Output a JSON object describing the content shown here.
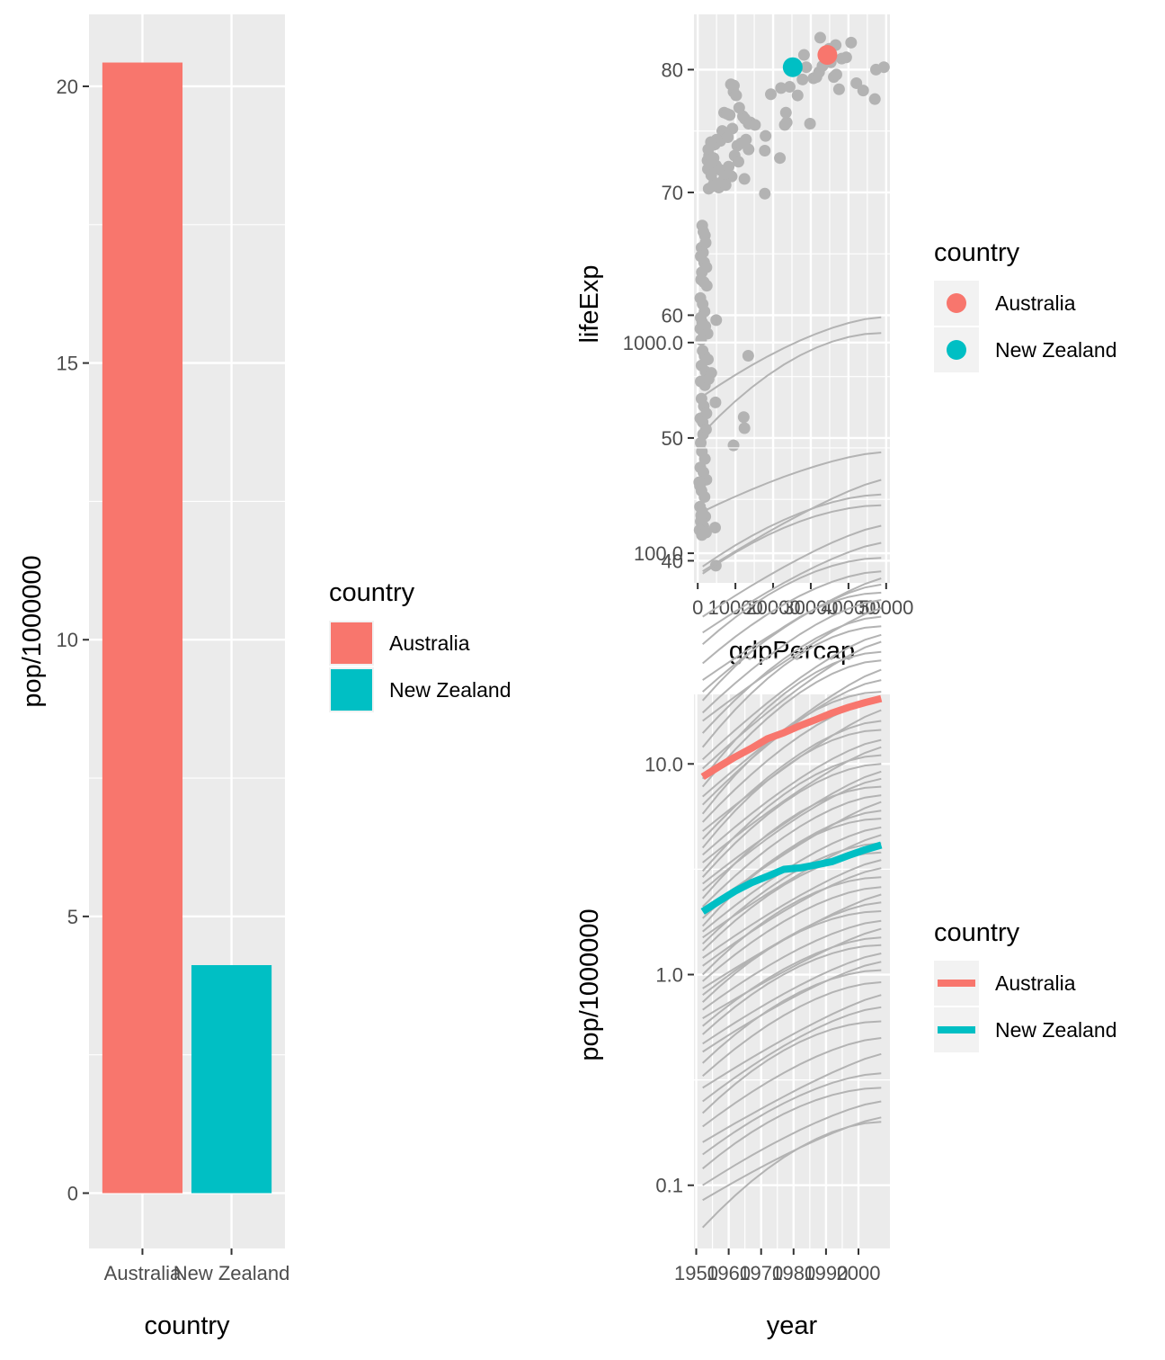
{
  "chart_data": [
    {
      "type": "bar",
      "title": "",
      "xlabel": "country",
      "ylabel": "pop/1000000",
      "categories": [
        "Australia",
        "New Zealand"
      ],
      "values": [
        20.43,
        4.12
      ],
      "colors": [
        "#F8766D",
        "#00BFC4"
      ],
      "ylim": [
        -1,
        21.3
      ],
      "yticks": [
        0,
        5,
        10,
        15,
        20
      ],
      "grid": true,
      "background": "#EBEBEB",
      "legend": {
        "title": "country",
        "position": "right",
        "items": [
          {
            "label": "Australia",
            "color": "#F8766D"
          },
          {
            "label": "New Zealand",
            "color": "#00BFC4"
          }
        ]
      }
    },
    {
      "type": "scatter",
      "title": "",
      "xlabel": "gdpPercap",
      "ylabel": "lifeExp",
      "xlim": [
        -1000,
        51000
      ],
      "ylim": [
        38.2,
        84.5
      ],
      "xticks": [
        0,
        10000,
        20000,
        30000,
        40000,
        50000
      ],
      "xtick_labels": [
        "0",
        "10000",
        "20000",
        "30000",
        "40000",
        "50000"
      ],
      "yticks": [
        40,
        50,
        60,
        70,
        80
      ],
      "grid": true,
      "background": "#EBEBEB",
      "base_color": "#B3B3B3",
      "highlight": [
        {
          "name": "Australia",
          "x": 34400,
          "y": 81.2,
          "color": "#F8766D"
        },
        {
          "name": "New Zealand",
          "x": 25200,
          "y": 80.2,
          "color": "#00BFC4"
        }
      ],
      "points": [
        [
          9600,
          78.7
        ],
        [
          9500,
          78.2
        ],
        [
          8800,
          78.8
        ],
        [
          10200,
          77.9
        ],
        [
          11000,
          76.9
        ],
        [
          12000,
          76.2
        ],
        [
          13500,
          75.6
        ],
        [
          12500,
          76.0
        ],
        [
          14000,
          75.7
        ],
        [
          15200,
          75.5
        ],
        [
          7000,
          76.5
        ],
        [
          7800,
          76.4
        ],
        [
          8500,
          76.3
        ],
        [
          9200,
          75.2
        ],
        [
          6500,
          75.0
        ],
        [
          7200,
          74.8
        ],
        [
          8000,
          74.5
        ],
        [
          10500,
          73.8
        ],
        [
          11500,
          74.0
        ],
        [
          12800,
          74.3
        ],
        [
          13500,
          73.5
        ],
        [
          9800,
          73.0
        ],
        [
          10800,
          72.5
        ],
        [
          6000,
          74.2
        ],
        [
          5000,
          74.3
        ],
        [
          4500,
          73.9
        ],
        [
          3500,
          74.1
        ],
        [
          2800,
          73.5
        ],
        [
          3000,
          73.0
        ],
        [
          2600,
          72.6
        ],
        [
          3300,
          72.3
        ],
        [
          4200,
          72.8
        ],
        [
          5200,
          72.0
        ],
        [
          4800,
          72.2
        ],
        [
          6200,
          71.8
        ],
        [
          7100,
          71.5
        ],
        [
          8200,
          72.1
        ],
        [
          9000,
          71.3
        ],
        [
          2700,
          71.9
        ],
        [
          3600,
          71.4
        ],
        [
          4400,
          70.8
        ],
        [
          5600,
          70.4
        ],
        [
          6800,
          71.0
        ],
        [
          7400,
          70.6
        ],
        [
          2900,
          70.3
        ],
        [
          3900,
          70.5
        ],
        [
          12400,
          71.1
        ],
        [
          17800,
          73.4
        ],
        [
          18000,
          74.6
        ],
        [
          21800,
          72.8
        ],
        [
          17800,
          69.9
        ],
        [
          22100,
          78.5
        ],
        [
          19400,
          78.0
        ],
        [
          24400,
          78.6
        ],
        [
          26500,
          77.9
        ],
        [
          27800,
          79.2
        ],
        [
          28800,
          80.2
        ],
        [
          30700,
          79.3
        ],
        [
          31500,
          79.4
        ],
        [
          32200,
          79.8
        ],
        [
          33100,
          80.3
        ],
        [
          34900,
          81.7
        ],
        [
          35300,
          80.6
        ],
        [
          36100,
          79.4
        ],
        [
          36800,
          79.6
        ],
        [
          37500,
          78.4
        ],
        [
          38200,
          80.9
        ],
        [
          39400,
          81.0
        ],
        [
          40700,
          82.2
        ],
        [
          42100,
          78.9
        ],
        [
          43900,
          78.3
        ],
        [
          47000,
          77.6
        ],
        [
          47300,
          80.0
        ],
        [
          49400,
          80.2
        ],
        [
          29800,
          75.6
        ],
        [
          23600,
          75.7
        ],
        [
          23400,
          76.5
        ],
        [
          23100,
          75.5
        ],
        [
          32500,
          82.6
        ],
        [
          36600,
          82.0
        ],
        [
          28200,
          81.2
        ],
        [
          1200,
          67.3
        ],
        [
          1500,
          66.8
        ],
        [
          1900,
          66.5
        ],
        [
          1000,
          65.5
        ],
        [
          1400,
          65.1
        ],
        [
          2100,
          65.9
        ],
        [
          800,
          64.8
        ],
        [
          1700,
          64.3
        ],
        [
          2300,
          63.9
        ],
        [
          1100,
          63.5
        ],
        [
          900,
          62.9
        ],
        [
          1600,
          62.7
        ],
        [
          2400,
          62.4
        ],
        [
          700,
          61.4
        ],
        [
          1300,
          60.9
        ],
        [
          1800,
          60.3
        ],
        [
          800,
          59.8
        ],
        [
          1200,
          59.4
        ],
        [
          2000,
          59.1
        ],
        [
          4900,
          59.6
        ],
        [
          700,
          58.9
        ],
        [
          1500,
          58.6
        ],
        [
          2600,
          58.5
        ],
        [
          900,
          58.0
        ],
        [
          1300,
          57.1
        ],
        [
          1800,
          56.7
        ],
        [
          2700,
          56.4
        ],
        [
          13400,
          56.7
        ],
        [
          1000,
          55.9
        ],
        [
          2100,
          55.4
        ],
        [
          3600,
          55.3
        ],
        [
          800,
          54.6
        ],
        [
          1900,
          54.3
        ],
        [
          2900,
          54.8
        ],
        [
          4700,
          52.9
        ],
        [
          1000,
          53.2
        ],
        [
          1600,
          52.6
        ],
        [
          2300,
          52.0
        ],
        [
          700,
          51.6
        ],
        [
          1300,
          51.3
        ],
        [
          2200,
          50.7
        ],
        [
          1400,
          50.3
        ],
        [
          12200,
          51.7
        ],
        [
          12400,
          50.8
        ],
        [
          9500,
          49.4
        ],
        [
          800,
          49.6
        ],
        [
          1100,
          48.9
        ],
        [
          1900,
          48.3
        ],
        [
          700,
          47.6
        ],
        [
          1500,
          47.2
        ],
        [
          2300,
          46.6
        ],
        [
          600,
          46.1
        ],
        [
          1000,
          45.7
        ],
        [
          400,
          46.4
        ],
        [
          1800,
          45.2
        ],
        [
          600,
          44.4
        ],
        [
          1200,
          44.0
        ],
        [
          2000,
          43.6
        ],
        [
          800,
          43.2
        ],
        [
          1500,
          42.8
        ],
        [
          500,
          42.5
        ],
        [
          1100,
          42.1
        ],
        [
          2200,
          42.3
        ],
        [
          4600,
          42.7
        ],
        [
          900,
          43.7
        ],
        [
          4800,
          39.6
        ]
      ]
    },
    {
      "type": "line",
      "title": "",
      "xlabel": "year",
      "ylabel": "pop/1000000",
      "yscale": "log10",
      "xlim": [
        1949.3,
        2009.7
      ],
      "ylim_log10": [
        -1.3,
        1.33
      ],
      "xticks": [
        1950,
        1960,
        1970,
        1980,
        1990,
        2000
      ],
      "yticks": [
        0.1,
        1.0,
        10.0,
        100.0,
        1000.0
      ],
      "ytick_labels": [
        "0.1",
        "1.0",
        "10.0",
        "100.0",
        "1000.0"
      ],
      "grid": true,
      "background": "#EBEBEB",
      "base_color": "#B3B3B3",
      "x": [
        1952,
        1957,
        1962,
        1967,
        1972,
        1977,
        1982,
        1987,
        1992,
        1997,
        2002,
        2007
      ],
      "highlight": [
        {
          "name": "Australia",
          "color": "#F8766D",
          "values": [
            8.69,
            9.71,
            10.79,
            11.87,
            13.18,
            14.07,
            15.18,
            16.26,
            17.48,
            18.57,
            19.55,
            20.43
          ]
        },
        {
          "name": "New Zealand",
          "color": "#00BFC4",
          "values": [
            1.99,
            2.23,
            2.49,
            2.73,
            2.93,
            3.16,
            3.21,
            3.32,
            3.44,
            3.68,
            3.91,
            4.12
          ]
        }
      ],
      "background_series_ranges": [
        [
          556.3,
          1318.7
        ],
        [
          372.0,
          1110.4
        ],
        [
          157.6,
          301.1
        ],
        [
          82.1,
          223.0
        ],
        [
          86.5,
          190.0
        ],
        [
          80.0,
          169.0
        ],
        [
          50.0,
          135.0
        ],
        [
          42.0,
          112.0
        ],
        [
          37.0,
          95.0
        ],
        [
          30.0,
          82.0
        ],
        [
          25.0,
          76.0
        ],
        [
          22.0,
          71.0
        ],
        [
          20.0,
          65.0
        ],
        [
          17.5,
          60.0
        ],
        [
          16.0,
          55.0
        ],
        [
          14.0,
          50.0
        ],
        [
          12.0,
          45.0
        ],
        [
          10.5,
          41.0
        ],
        [
          9.5,
          38.0
        ],
        [
          8.5,
          34.0
        ],
        [
          7.8,
          31.0
        ],
        [
          7.0,
          28.0
        ],
        [
          6.4,
          25.0
        ],
        [
          5.8,
          22.0
        ],
        [
          5.3,
          20.0
        ],
        [
          4.8,
          18.0
        ],
        [
          4.4,
          16.0
        ],
        [
          4.0,
          14.5
        ],
        [
          3.7,
          13.0
        ],
        [
          3.4,
          12.0
        ],
        [
          3.1,
          11.0
        ],
        [
          2.9,
          10.0
        ],
        [
          2.7,
          9.2
        ],
        [
          2.5,
          8.5
        ],
        [
          2.3,
          7.8
        ],
        [
          2.1,
          7.1
        ],
        [
          2.0,
          6.6
        ],
        [
          1.85,
          6.0
        ],
        [
          1.7,
          5.5
        ],
        [
          1.6,
          5.0
        ],
        [
          1.5,
          4.6
        ],
        [
          1.4,
          4.2
        ],
        [
          1.3,
          3.8
        ],
        [
          1.2,
          3.5
        ],
        [
          1.1,
          3.2
        ],
        [
          1.0,
          2.9
        ],
        [
          0.93,
          2.6
        ],
        [
          0.86,
          2.4
        ],
        [
          0.8,
          2.2
        ],
        [
          0.74,
          2.0
        ],
        [
          0.68,
          1.8
        ],
        [
          0.62,
          1.65
        ],
        [
          0.57,
          1.5
        ],
        [
          0.52,
          1.38
        ],
        [
          0.47,
          1.26
        ],
        [
          0.43,
          1.15
        ],
        [
          0.38,
          1.05
        ],
        [
          0.33,
          0.92
        ],
        [
          0.29,
          0.8
        ],
        [
          0.25,
          0.7
        ],
        [
          0.22,
          0.6
        ],
        [
          0.19,
          0.5
        ],
        [
          0.16,
          0.42
        ],
        [
          0.14,
          0.34
        ],
        [
          0.12,
          0.29
        ],
        [
          0.1,
          0.25
        ],
        [
          0.085,
          0.21
        ],
        [
          0.063,
          0.2
        ]
      ]
    }
  ]
}
